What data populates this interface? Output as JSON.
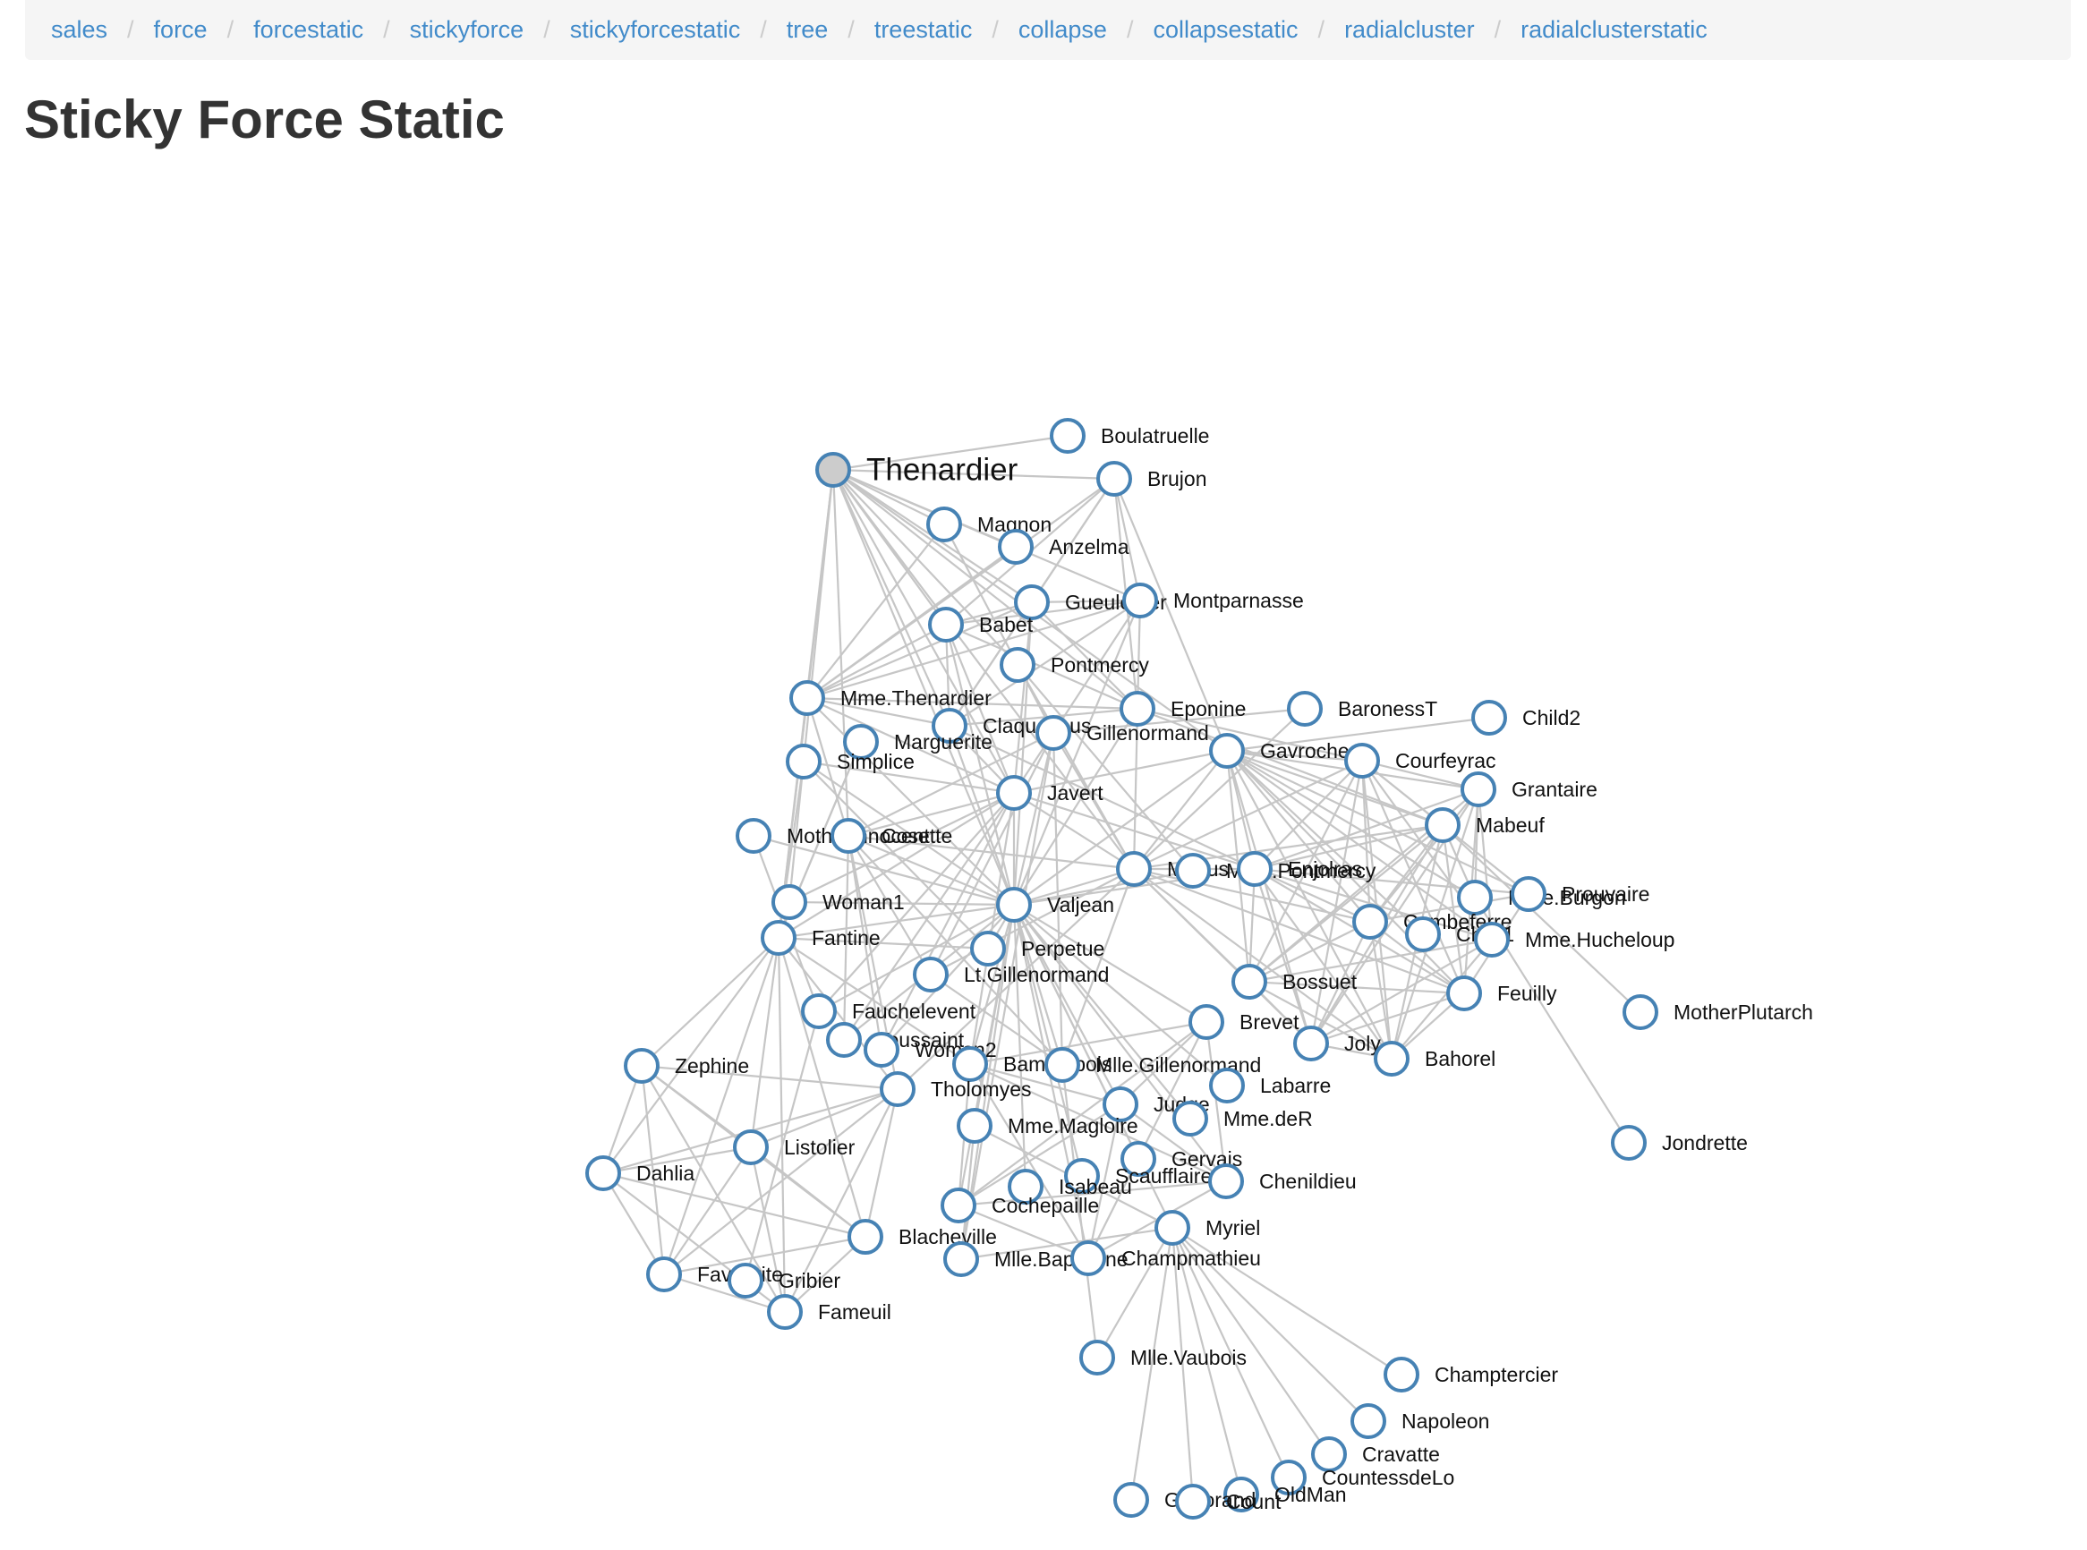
{
  "breadcrumb": {
    "items": [
      {
        "label": "sales"
      },
      {
        "label": "force"
      },
      {
        "label": "forcestatic"
      },
      {
        "label": "stickyforce"
      },
      {
        "label": "stickyforcestatic"
      },
      {
        "label": "tree"
      },
      {
        "label": "treestatic"
      },
      {
        "label": "collapse"
      },
      {
        "label": "collapsestatic"
      },
      {
        "label": "radialcluster"
      },
      {
        "label": "radialclusterstatic"
      }
    ],
    "separator": "/"
  },
  "page": {
    "title": "Sticky Force Static"
  },
  "graph": {
    "colors": {
      "link": "#c6c6c6",
      "node_stroke": "#4682b4",
      "node_fill": "#ffffff",
      "fixed_fill": "#cccccc"
    },
    "highlighted_node": "Thenardier",
    "nodes": [
      "Thenardier",
      "Boulatruelle",
      "Brujon",
      "Magnon",
      "Anzelma",
      "Gueulemer",
      "Montparnasse",
      "Babet",
      "Pontmercy",
      "Mme.Thenardier",
      "Eponine",
      "BaronessT",
      "Child2",
      "Claquesous",
      "Gillenormand",
      "Marguerite",
      "Simplice",
      "Gavroche",
      "Courfeyrac",
      "Grantaire",
      "Javert",
      "MotherInnocent",
      "Cosette",
      "Mabeuf",
      "Marius",
      "Mme.Pontmercy",
      "Enjolras",
      "Woman1",
      "Valjean",
      "Mme.Burgon",
      "Prouvaire",
      "Combeferre",
      "Child1",
      "Mme.Hucheloup",
      "Fantine",
      "Perpetue",
      "Lt.Gillenormand",
      "Bossuet",
      "Feuilly",
      "MotherPlutarch",
      "Fauchelevent",
      "Brevet",
      "Toussaint",
      "Woman2",
      "Joly",
      "Bahorel",
      "Zephine",
      "Bamatabois",
      "Mlle.Gillenormand",
      "Tholomyes",
      "Labarre",
      "Judge",
      "Mme.deR",
      "Listolier",
      "Mme.Magloire",
      "Gervais",
      "Dahlia",
      "Scaufflaire",
      "Isabeau",
      "Chenildieu",
      "Cochepaille",
      "Myriel",
      "Jondrette",
      "Blacheville",
      "Mlle.Baptistine",
      "Champmathieu",
      "Favourite",
      "Gribier",
      "Fameuil",
      "Mlle.Vaubois",
      "Champtercier",
      "Napoleon",
      "Cravatte",
      "CountessdeLo",
      "OldMan",
      "Geborand",
      "Count"
    ],
    "links": [
      [
        "Thenardier",
        "Boulatruelle"
      ],
      [
        "Thenardier",
        "Brujon"
      ],
      [
        "Thenardier",
        "Magnon"
      ],
      [
        "Thenardier",
        "Anzelma"
      ],
      [
        "Thenardier",
        "Gueulemer"
      ],
      [
        "Thenardier",
        "Montparnasse"
      ],
      [
        "Thenardier",
        "Babet"
      ],
      [
        "Thenardier",
        "Pontmercy"
      ],
      [
        "Thenardier",
        "Mme.Thenardier"
      ],
      [
        "Thenardier",
        "Eponine"
      ],
      [
        "Thenardier",
        "Claquesous"
      ],
      [
        "Thenardier",
        "Javert"
      ],
      [
        "Thenardier",
        "Valjean"
      ],
      [
        "Thenardier",
        "Cosette"
      ],
      [
        "Thenardier",
        "Marius"
      ],
      [
        "Thenardier",
        "Gavroche"
      ],
      [
        "Thenardier",
        "Fantine"
      ],
      [
        "Thenardier",
        "Woman1"
      ],
      [
        "Brujon",
        "Gueulemer"
      ],
      [
        "Brujon",
        "Babet"
      ],
      [
        "Brujon",
        "Montparnasse"
      ],
      [
        "Brujon",
        "Claquesous"
      ],
      [
        "Brujon",
        "Eponine"
      ],
      [
        "Brujon",
        "Gavroche"
      ],
      [
        "Brujon",
        "Mme.Thenardier"
      ],
      [
        "Mme.Thenardier",
        "Anzelma"
      ],
      [
        "Mme.Thenardier",
        "Magnon"
      ],
      [
        "Mme.Thenardier",
        "Eponine"
      ],
      [
        "Mme.Thenardier",
        "Javert"
      ],
      [
        "Mme.Thenardier",
        "Valjean"
      ],
      [
        "Mme.Thenardier",
        "Cosette"
      ],
      [
        "Mme.Thenardier",
        "Fantine"
      ],
      [
        "Mme.Thenardier",
        "Babet"
      ],
      [
        "Mme.Thenardier",
        "Gueulemer"
      ],
      [
        "Mme.Thenardier",
        "Claquesous"
      ],
      [
        "Mme.Thenardier",
        "Montparnasse"
      ],
      [
        "Gueulemer",
        "Babet"
      ],
      [
        "Gueulemer",
        "Montparnasse"
      ],
      [
        "Gueulemer",
        "Claquesous"
      ],
      [
        "Gueulemer",
        "Eponine"
      ],
      [
        "Gueulemer",
        "Valjean"
      ],
      [
        "Gueulemer",
        "Javert"
      ],
      [
        "Babet",
        "Montparnasse"
      ],
      [
        "Babet",
        "Claquesous"
      ],
      [
        "Babet",
        "Valjean"
      ],
      [
        "Babet",
        "Javert"
      ],
      [
        "Babet",
        "Eponine"
      ],
      [
        "Claquesous",
        "Montparnasse"
      ],
      [
        "Claquesous",
        "Valjean"
      ],
      [
        "Claquesous",
        "Javert"
      ],
      [
        "Claquesous",
        "Eponine"
      ],
      [
        "Claquesous",
        "Enjolras"
      ],
      [
        "Montparnasse",
        "Valjean"
      ],
      [
        "Montparnasse",
        "Javert"
      ],
      [
        "Montparnasse",
        "Eponine"
      ],
      [
        "Pontmercy",
        "Marius"
      ],
      [
        "Pontmercy",
        "Mme.Pontmercy"
      ],
      [
        "Eponine",
        "Marius"
      ],
      [
        "Eponine",
        "Mabeuf"
      ],
      [
        "Eponine",
        "Courfeyrac"
      ],
      [
        "Eponine",
        "Valjean"
      ],
      [
        "Gillenormand",
        "Valjean"
      ],
      [
        "Gillenormand",
        "Cosette"
      ],
      [
        "Gillenormand",
        "Marius"
      ],
      [
        "Gillenormand",
        "Mlle.Gillenormand"
      ],
      [
        "Gillenormand",
        "Lt.Gillenormand"
      ],
      [
        "Gillenormand",
        "Magnon"
      ],
      [
        "Gillenormand",
        "Mlle.Baptistine"
      ],
      [
        "BaronessT",
        "Gillenormand"
      ],
      [
        "BaronessT",
        "Marius"
      ],
      [
        "Child2",
        "Gavroche"
      ],
      [
        "Child1",
        "Gavroche"
      ],
      [
        "Marguerite",
        "Fantine"
      ],
      [
        "Simplice",
        "Valjean"
      ],
      [
        "Simplice",
        "Fantine"
      ],
      [
        "Simplice",
        "Javert"
      ],
      [
        "Simplice",
        "Perpetue"
      ],
      [
        "MotherInnocent",
        "Fauchelevent"
      ],
      [
        "MotherInnocent",
        "Valjean"
      ],
      [
        "Woman1",
        "Valjean"
      ],
      [
        "Woman1",
        "Javert"
      ],
      [
        "Woman2",
        "Valjean"
      ],
      [
        "Woman2",
        "Javert"
      ],
      [
        "Woman2",
        "Cosette"
      ],
      [
        "Javert",
        "Valjean"
      ],
      [
        "Javert",
        "Fantine"
      ],
      [
        "Javert",
        "Cosette"
      ],
      [
        "Javert",
        "Fauchelevent"
      ],
      [
        "Javert",
        "Bamatabois"
      ],
      [
        "Javert",
        "Toussaint"
      ],
      [
        "Javert",
        "Gavroche"
      ],
      [
        "Javert",
        "Enjolras"
      ],
      [
        "Javert",
        "Marius"
      ],
      [
        "Cosette",
        "Valjean"
      ],
      [
        "Cosette",
        "Tholomyes"
      ],
      [
        "Cosette",
        "Marius"
      ],
      [
        "Cosette",
        "Toussaint"
      ],
      [
        "Cosette",
        "Lt.Gillenormand"
      ],
      [
        "Cosette",
        "Mlle.Gillenormand"
      ],
      [
        "Valjean",
        "Fantine"
      ],
      [
        "Valjean",
        "Marius"
      ],
      [
        "Valjean",
        "Mlle.Gillenormand"
      ],
      [
        "Valjean",
        "Labarre"
      ],
      [
        "Valjean",
        "Myriel"
      ],
      [
        "Valjean",
        "Mlle.Baptistine"
      ],
      [
        "Valjean",
        "Mme.Magloire"
      ],
      [
        "Valjean",
        "Fauchelevent"
      ],
      [
        "Valjean",
        "Bamatabois"
      ],
      [
        "Valjean",
        "Judge"
      ],
      [
        "Valjean",
        "Champmathieu"
      ],
      [
        "Valjean",
        "Brevet"
      ],
      [
        "Valjean",
        "Chenildieu"
      ],
      [
        "Valjean",
        "Cochepaille"
      ],
      [
        "Valjean",
        "Gervais"
      ],
      [
        "Valjean",
        "Isabeau"
      ],
      [
        "Valjean",
        "Scaufflaire"
      ],
      [
        "Valjean",
        "Toussaint"
      ],
      [
        "Valjean",
        "Mme.deR"
      ],
      [
        "Valjean",
        "Gavroche"
      ],
      [
        "Valjean",
        "Enjolras"
      ],
      [
        "Valjean",
        "Perpetue"
      ],
      [
        "Valjean",
        "Mme.Pontmercy"
      ],
      [
        "Fantine",
        "Tholomyes"
      ],
      [
        "Fantine",
        "Listolier"
      ],
      [
        "Fantine",
        "Fameuil"
      ],
      [
        "Fantine",
        "Blacheville"
      ],
      [
        "Fantine",
        "Favourite"
      ],
      [
        "Fantine",
        "Dahlia"
      ],
      [
        "Fantine",
        "Zephine"
      ],
      [
        "Fantine",
        "Marguerite"
      ],
      [
        "Fantine",
        "Perpetue"
      ],
      [
        "Fantine",
        "Bamatabois"
      ],
      [
        "Fantine",
        "Mme.Thenardier"
      ],
      [
        "Zephine",
        "Tholomyes"
      ],
      [
        "Zephine",
        "Listolier"
      ],
      [
        "Zephine",
        "Fameuil"
      ],
      [
        "Zephine",
        "Blacheville"
      ],
      [
        "Zephine",
        "Favourite"
      ],
      [
        "Zephine",
        "Dahlia"
      ],
      [
        "Dahlia",
        "Tholomyes"
      ],
      [
        "Dahlia",
        "Listolier"
      ],
      [
        "Dahlia",
        "Fameuil"
      ],
      [
        "Dahlia",
        "Blacheville"
      ],
      [
        "Dahlia",
        "Favourite"
      ],
      [
        "Listolier",
        "Tholomyes"
      ],
      [
        "Listolier",
        "Fameuil"
      ],
      [
        "Listolier",
        "Blacheville"
      ],
      [
        "Listolier",
        "Favourite"
      ],
      [
        "Tholomyes",
        "Fameuil"
      ],
      [
        "Tholomyes",
        "Blacheville"
      ],
      [
        "Tholomyes",
        "Favourite"
      ],
      [
        "Tholomyes",
        "Marius"
      ],
      [
        "Fameuil",
        "Blacheville"
      ],
      [
        "Fameuil",
        "Favourite"
      ],
      [
        "Blacheville",
        "Favourite"
      ],
      [
        "Gribier",
        "Fauchelevent"
      ],
      [
        "Bamatabois",
        "Judge"
      ],
      [
        "Bamatabois",
        "Champmathieu"
      ],
      [
        "Bamatabois",
        "Brevet"
      ],
      [
        "Bamatabois",
        "Chenildieu"
      ],
      [
        "Bamatabois",
        "Cochepaille"
      ],
      [
        "Judge",
        "Champmathieu"
      ],
      [
        "Judge",
        "Brevet"
      ],
      [
        "Judge",
        "Chenildieu"
      ],
      [
        "Judge",
        "Cochepaille"
      ],
      [
        "Champmathieu",
        "Brevet"
      ],
      [
        "Champmathieu",
        "Chenildieu"
      ],
      [
        "Champmathieu",
        "Cochepaille"
      ],
      [
        "Brevet",
        "Chenildieu"
      ],
      [
        "Brevet",
        "Cochepaille"
      ],
      [
        "Chenildieu",
        "Cochepaille"
      ],
      [
        "Myriel",
        "Napoleon"
      ],
      [
        "Myriel",
        "Mlle.Baptistine"
      ],
      [
        "Myriel",
        "Mme.Magloire"
      ],
      [
        "Myriel",
        "CountessdeLo"
      ],
      [
        "Myriel",
        "Geborand"
      ],
      [
        "Myriel",
        "Champtercier"
      ],
      [
        "Myriel",
        "Cravatte"
      ],
      [
        "Myriel",
        "Count"
      ],
      [
        "Myriel",
        "OldMan"
      ],
      [
        "Myriel",
        "Mlle.Vaubois"
      ],
      [
        "Mlle.Baptistine",
        "Mme.Magloire"
      ],
      [
        "Lt.Gillenormand",
        "Mlle.Gillenormand"
      ],
      [
        "Lt.Gillenormand",
        "Marius"
      ],
      [
        "Mlle.Gillenormand",
        "Marius"
      ],
      [
        "Mlle.Gillenormand",
        "Mlle.Vaubois"
      ],
      [
        "Marius",
        "Mabeuf"
      ],
      [
        "Marius",
        "Enjolras"
      ],
      [
        "Marius",
        "Combeferre"
      ],
      [
        "Marius",
        "Feuilly"
      ],
      [
        "Marius",
        "Courfeyrac"
      ],
      [
        "Marius",
        "Bahorel"
      ],
      [
        "Marius",
        "Joly"
      ],
      [
        "Marius",
        "Gavroche"
      ],
      [
        "Marius",
        "Bossuet"
      ],
      [
        "Gavroche",
        "Mabeuf"
      ],
      [
        "Gavroche",
        "Enjolras"
      ],
      [
        "Gavroche",
        "Combeferre"
      ],
      [
        "Gavroche",
        "Prouvaire"
      ],
      [
        "Gavroche",
        "Feuilly"
      ],
      [
        "Gavroche",
        "Courfeyrac"
      ],
      [
        "Gavroche",
        "Bahorel"
      ],
      [
        "Gavroche",
        "Bossuet"
      ],
      [
        "Gavroche",
        "Joly"
      ],
      [
        "Gavroche",
        "Grantaire"
      ],
      [
        "Gavroche",
        "Mme.Burgon"
      ],
      [
        "Gavroche",
        "Mme.Hucheloup"
      ],
      [
        "Mabeuf",
        "Enjolras"
      ],
      [
        "Mabeuf",
        "Combeferre"
      ],
      [
        "Mabeuf",
        "Feuilly"
      ],
      [
        "Mabeuf",
        "Courfeyrac"
      ],
      [
        "Mabeuf",
        "Bahorel"
      ],
      [
        "Mabeuf",
        "Bossuet"
      ],
      [
        "Mabeuf",
        "Joly"
      ],
      [
        "Mabeuf",
        "MotherPlutarch"
      ],
      [
        "Enjolras",
        "Combeferre"
      ],
      [
        "Enjolras",
        "Prouvaire"
      ],
      [
        "Enjolras",
        "Feuilly"
      ],
      [
        "Enjolras",
        "Courfeyrac"
      ],
      [
        "Enjolras",
        "Bahorel"
      ],
      [
        "Enjolras",
        "Bossuet"
      ],
      [
        "Enjolras",
        "Joly"
      ],
      [
        "Enjolras",
        "Grantaire"
      ],
      [
        "Enjolras",
        "Mme.Hucheloup"
      ],
      [
        "Combeferre",
        "Prouvaire"
      ],
      [
        "Combeferre",
        "Feuilly"
      ],
      [
        "Combeferre",
        "Courfeyrac"
      ],
      [
        "Combeferre",
        "Bahorel"
      ],
      [
        "Combeferre",
        "Bossuet"
      ],
      [
        "Combeferre",
        "Joly"
      ],
      [
        "Combeferre",
        "Grantaire"
      ],
      [
        "Prouvaire",
        "Feuilly"
      ],
      [
        "Prouvaire",
        "Courfeyrac"
      ],
      [
        "Feuilly",
        "Courfeyrac"
      ],
      [
        "Feuilly",
        "Bahorel"
      ],
      [
        "Feuilly",
        "Bossuet"
      ],
      [
        "Feuilly",
        "Joly"
      ],
      [
        "Feuilly",
        "Grantaire"
      ],
      [
        "Courfeyrac",
        "Bahorel"
      ],
      [
        "Courfeyrac",
        "Bossuet"
      ],
      [
        "Courfeyrac",
        "Joly"
      ],
      [
        "Courfeyrac",
        "Grantaire"
      ],
      [
        "Courfeyrac",
        "Mme.Hucheloup"
      ],
      [
        "Bahorel",
        "Bossuet"
      ],
      [
        "Bahorel",
        "Joly"
      ],
      [
        "Bahorel",
        "Grantaire"
      ],
      [
        "Bahorel",
        "Mme.Hucheloup"
      ],
      [
        "Bossuet",
        "Joly"
      ],
      [
        "Bossuet",
        "Grantaire"
      ],
      [
        "Bossuet",
        "Mme.Hucheloup"
      ],
      [
        "Joly",
        "Grantaire"
      ],
      [
        "Joly",
        "Mme.Hucheloup"
      ],
      [
        "Grantaire",
        "Mme.Hucheloup"
      ],
      [
        "Mme.Burgon",
        "Grantaire"
      ],
      [
        "Mme.Burgon",
        "Mabeuf"
      ],
      [
        "Jondrette",
        "Mme.Burgon"
      ]
    ]
  }
}
